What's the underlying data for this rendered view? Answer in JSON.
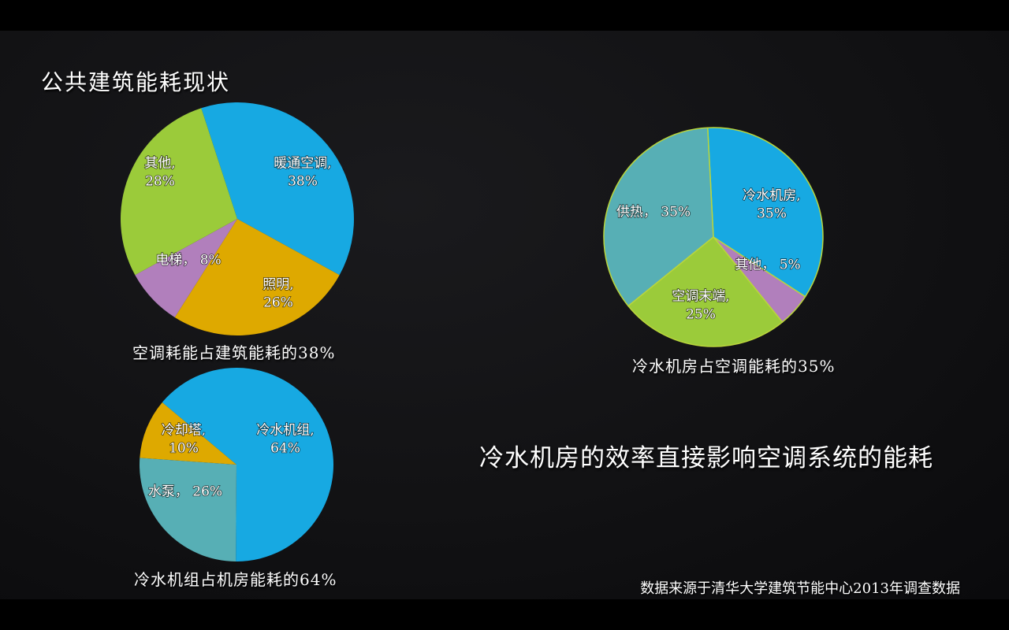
{
  "slide": {
    "title": "公共建筑能耗现状",
    "statement": "冷水机房的效率直接影响空调系统的能耗",
    "source": "数据来源于清华大学建筑节能中心2013年调查数据"
  },
  "colors": {
    "blue": "#17A9E2",
    "green": "#9BCB3A",
    "gold": "#DEA900",
    "purple": "#B17FBC",
    "teal": "#57AFB5",
    "outline": "#B9D53C"
  },
  "chart_data": [
    {
      "type": "pie",
      "title": "空调耗能占建筑能耗的38%",
      "legend": "none",
      "start_angle": -18,
      "radius": 148,
      "stroke": null,
      "categories": [
        "暖通空调",
        "照明",
        "电梯",
        "其他"
      ],
      "values": [
        38,
        26,
        8,
        28
      ],
      "slices": [
        {
          "name_en": "hvac",
          "label": "暖通空调",
          "value": 38,
          "color_key": "blue",
          "lines": [
            "暖通空调,",
            "38%"
          ],
          "label_pos": [
            231,
            78
          ]
        },
        {
          "name_en": "lighting",
          "label": "照明",
          "value": 26,
          "color_key": "gold",
          "lines": [
            "照明,",
            "26%"
          ],
          "label_pos": [
            200,
            232
          ]
        },
        {
          "name_en": "elevator",
          "label": "电梯",
          "value": 8,
          "color_key": "purple",
          "lines": [
            "电梯， 8%"
          ],
          "label_pos": [
            86,
            201
          ]
        },
        {
          "name_en": "other",
          "label": "其他",
          "value": 28,
          "color_key": "green",
          "lines": [
            "其他,",
            "28%"
          ],
          "label_pos": [
            50,
            78
          ]
        }
      ]
    },
    {
      "type": "pie",
      "title": "冷水机房占空调能耗的35%",
      "legend": "none",
      "start_angle": -3,
      "radius": 140,
      "stroke": "outline",
      "categories": [
        "冷水机房",
        "其他",
        "空调末端",
        "供热"
      ],
      "values": [
        35,
        5,
        25,
        35
      ],
      "slices": [
        {
          "name_en": "chiller-plant",
          "label": "冷水机房",
          "value": 35,
          "color_key": "blue",
          "lines": [
            "冷水机房,",
            "35%"
          ],
          "label_pos": [
            214,
            88
          ]
        },
        {
          "name_en": "other",
          "label": "其他",
          "value": 5,
          "color_key": "purple",
          "lines": [
            "其他， 5%"
          ],
          "label_pos": [
            209,
            176
          ]
        },
        {
          "name_en": "ac-terminal",
          "label": "空调末端",
          "value": 25,
          "color_key": "green",
          "lines": [
            "空调末端,",
            "25%"
          ],
          "label_pos": [
            124,
            216
          ]
        },
        {
          "name_en": "heating",
          "label": "供热",
          "value": 35,
          "color_key": "teal",
          "lines": [
            "供热， 35%"
          ],
          "label_pos": [
            64,
            109
          ]
        }
      ]
    },
    {
      "type": "pie",
      "title": "冷水机组占机房能耗的64%",
      "legend": "none",
      "start_angle": -50,
      "radius": 123,
      "stroke": null,
      "categories": [
        "冷水机组",
        "水泵",
        "冷却塔"
      ],
      "values": [
        64,
        26,
        10
      ],
      "slices": [
        {
          "name_en": "chiller",
          "label": "冷水机组",
          "value": 64,
          "color_key": "blue",
          "lines": [
            "冷水机组,",
            "64%"
          ],
          "label_pos": [
            185,
            80
          ]
        },
        {
          "name_en": "pump",
          "label": "水泵",
          "value": 26,
          "color_key": "teal",
          "lines": [
            "水泵， 26%"
          ],
          "label_pos": [
            58,
            158
          ]
        },
        {
          "name_en": "cooling-tower",
          "label": "冷却塔",
          "value": 10,
          "color_key": "gold",
          "lines": [
            "冷却塔,",
            "10%"
          ],
          "label_pos": [
            56,
            80
          ]
        }
      ]
    }
  ]
}
